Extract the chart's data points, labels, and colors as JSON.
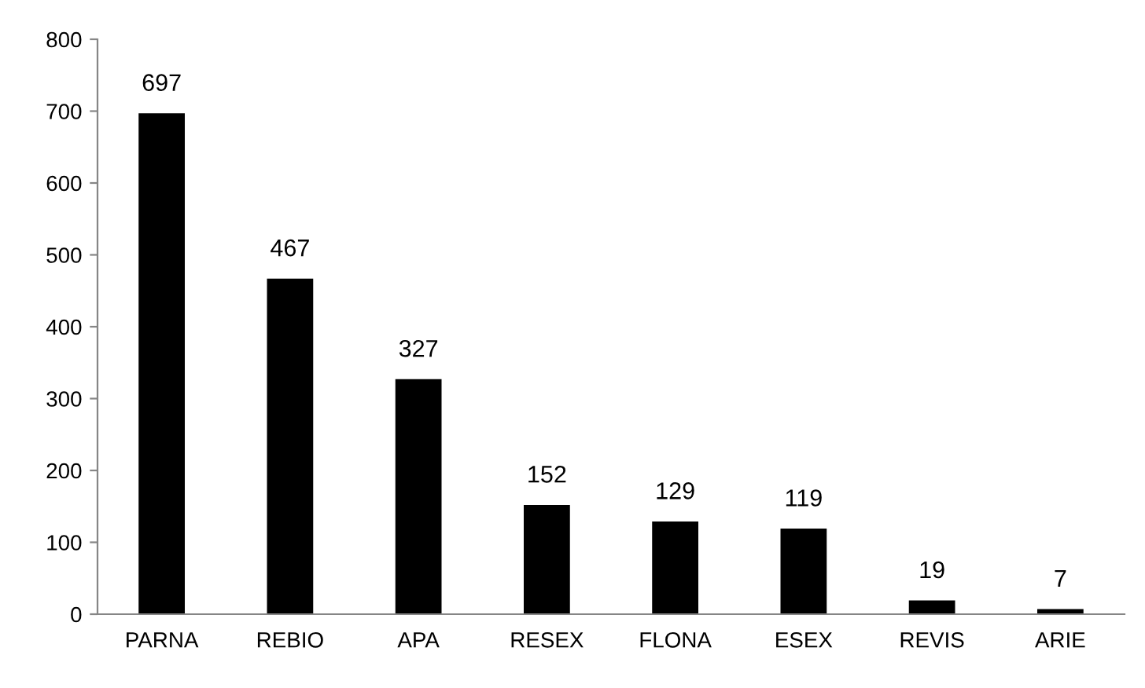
{
  "chart_data": {
    "type": "bar",
    "categories": [
      "PARNA",
      "REBIO",
      "APA",
      "RESEX",
      "FLONA",
      "ESEX",
      "REVIS",
      "ARIE"
    ],
    "values": [
      697,
      467,
      327,
      152,
      129,
      119,
      19,
      7
    ],
    "color": "#000000",
    "ylim": [
      0,
      800
    ],
    "yticks": [
      0,
      100,
      200,
      300,
      400,
      500,
      600,
      700,
      800
    ],
    "data_labels": true,
    "grid": false,
    "legend": false
  }
}
